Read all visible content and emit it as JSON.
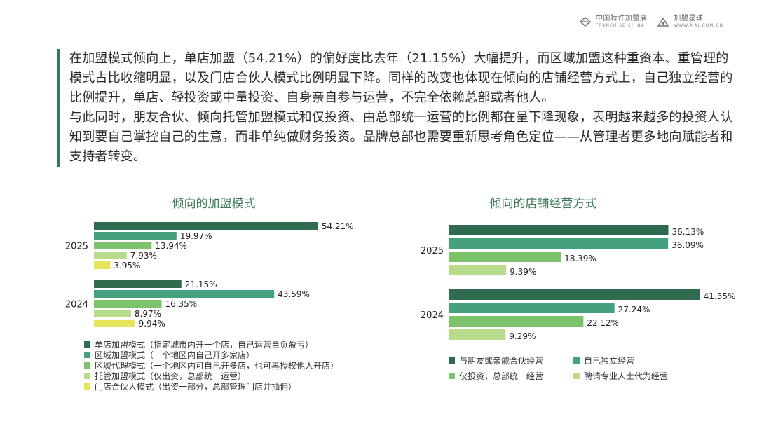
{
  "logos": {
    "left_cn": "中国特许加盟展",
    "left_en": "FRANCHISE CHINA",
    "right_cn": "加盟星球",
    "right_en": "WWW.MAJ.COM.CN"
  },
  "paragraphs": [
    "在加盟模式倾向上，单店加盟（54.21%）的偏好度比去年（21.15%）大幅提升，而区域加盟这种重资本、重管理的模式占比收缩明显，以及门店合伙人模式比例明显下降。同样的改变也体现在倾向的店铺经营方式上，自己独立经营的比例提升，单店、轻投资或中量投资、自身亲自参与运营，不完全依赖总部或者他人。",
    "与此同时，朋友合伙、倾向托管加盟模式和仅投资、由总部统一运营的比例都在呈下降现象，表明越来越多的投资人认知到要自己掌控自己的生意，而非单纯做财务投资。品牌总部也需要重新思考角色定位——从管理者更多地向赋能者和支持者转变。"
  ],
  "chart_data": [
    {
      "type": "bar",
      "orientation": "horizontal",
      "title": "倾向的加盟模式",
      "categories": [
        "2025",
        "2024"
      ],
      "series": [
        {
          "name": "单店加盟模式（指定城市内开一个店，自己运营自负盈亏）",
          "values": [
            54.21,
            21.15
          ],
          "labels": [
            "54.21%",
            "21.15%"
          ],
          "color": "#2e6b4f"
        },
        {
          "name": "区域加盟模式（一个地区内自己开多家店）",
          "values": [
            19.97,
            43.59
          ],
          "labels": [
            "19.97%",
            "43.59%"
          ],
          "color": "#45a07e"
        },
        {
          "name": "区域代理模式（一个地区内可自己开多店，也可再授权他人开店）",
          "values": [
            13.94,
            16.35
          ],
          "labels": [
            "13.94%",
            "16.35%"
          ],
          "color": "#7cc36b"
        },
        {
          "name": "托管加盟模式（仅出资，总部统一运营）",
          "values": [
            7.93,
            8.97
          ],
          "labels": [
            "7.93%",
            "8.97%"
          ],
          "color": "#b9dc8c"
        },
        {
          "name": "门店合伙人模式（出资一部分，总部管理门店并抽佣）",
          "values": [
            3.95,
            9.94
          ],
          "labels": [
            "3.95%",
            "9.94%"
          ],
          "color": "#e6e45a"
        }
      ],
      "xlim": [
        0,
        60
      ],
      "legend": "bottom"
    },
    {
      "type": "bar",
      "orientation": "horizontal",
      "title": "倾向的店铺经营方式",
      "categories": [
        "2025",
        "2024"
      ],
      "series": [
        {
          "name": "与朋友或亲戚合伙经营",
          "values": [
            36.13,
            41.35
          ],
          "labels": [
            "36.13%",
            "41.35%"
          ],
          "color": "#2e6b4f"
        },
        {
          "name": "自己独立经营",
          "values": [
            36.09,
            27.24
          ],
          "labels": [
            "36.09%",
            "27.24%"
          ],
          "color": "#45a07e"
        },
        {
          "name": "仅投资，总部统一经营",
          "values": [
            18.39,
            22.12
          ],
          "labels": [
            "18.39%",
            "22.12%"
          ],
          "color": "#7cc36b"
        },
        {
          "name": "聘请专业人士代为经营",
          "values": [
            9.39,
            9.29
          ],
          "labels": [
            "9.39%",
            "9.29%"
          ],
          "color": "#b9dc8c"
        }
      ],
      "xlim": [
        0,
        45
      ],
      "legend": "bottom"
    }
  ]
}
